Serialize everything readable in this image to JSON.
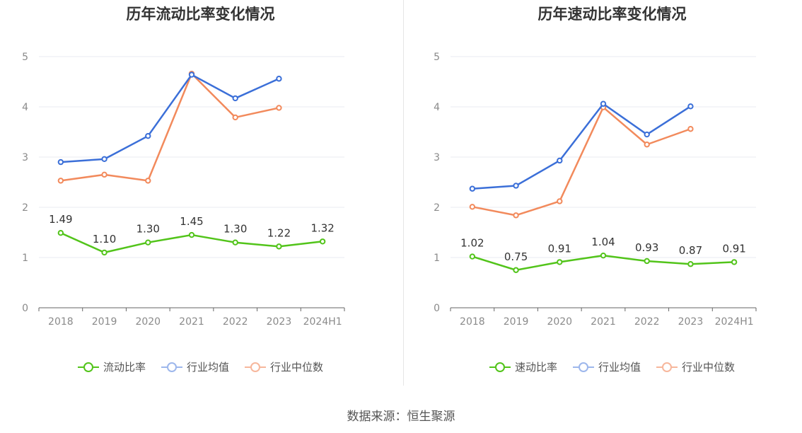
{
  "source_text": "数据来源：恒生聚源",
  "colors": {
    "primary": "#52c41a",
    "avg": "#3b6fd8",
    "median": "#f28a5c"
  },
  "chart_data": [
    {
      "type": "line",
      "title": "历年流动比率变化情况",
      "categories": [
        "2018",
        "2019",
        "2020",
        "2021",
        "2022",
        "2023",
        "2024H1"
      ],
      "ylim": [
        0,
        5
      ],
      "yticks": [
        0,
        1,
        2,
        3,
        4,
        5
      ],
      "grid": true,
      "legend_position": "bottom",
      "series": [
        {
          "name": "流动比率",
          "values": [
            1.49,
            1.1,
            1.3,
            1.45,
            1.3,
            1.22,
            1.32
          ],
          "labels": [
            "1.49",
            "1.10",
            "1.30",
            "1.45",
            "1.30",
            "1.22",
            "1.32"
          ]
        },
        {
          "name": "行业均值",
          "values": [
            2.9,
            2.96,
            3.42,
            4.64,
            4.17,
            4.56,
            null
          ]
        },
        {
          "name": "行业中位数",
          "values": [
            2.53,
            2.65,
            2.53,
            4.66,
            3.79,
            3.98,
            null
          ]
        }
      ]
    },
    {
      "type": "line",
      "title": "历年速动比率变化情况",
      "categories": [
        "2018",
        "2019",
        "2020",
        "2021",
        "2022",
        "2023",
        "2024H1"
      ],
      "ylim": [
        0,
        5
      ],
      "yticks": [
        0,
        1,
        2,
        3,
        4,
        5
      ],
      "grid": true,
      "legend_position": "bottom",
      "series": [
        {
          "name": "速动比率",
          "values": [
            1.02,
            0.75,
            0.91,
            1.04,
            0.93,
            0.87,
            0.91
          ],
          "labels": [
            "1.02",
            "0.75",
            "0.91",
            "1.04",
            "0.93",
            "0.87",
            "0.91"
          ]
        },
        {
          "name": "行业均值",
          "values": [
            2.37,
            2.43,
            2.93,
            4.06,
            3.45,
            4.01,
            null
          ]
        },
        {
          "name": "行业中位数",
          "values": [
            2.01,
            1.84,
            2.12,
            3.99,
            3.25,
            3.56,
            null
          ]
        }
      ]
    }
  ]
}
